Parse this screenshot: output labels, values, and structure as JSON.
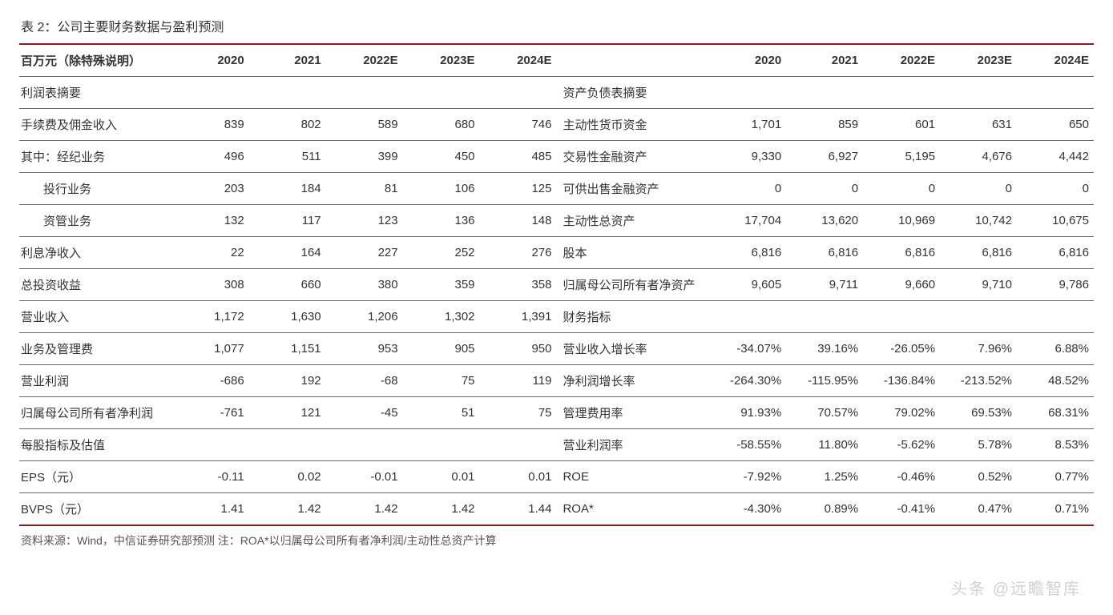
{
  "title": "表 2：公司主要财务数据与盈利预测",
  "header": {
    "left_label": "百万元（除特殊说明）",
    "years": [
      "2020",
      "2021",
      "2022E",
      "2023E",
      "2024E"
    ]
  },
  "sections": {
    "left_section_1": "利润表摘要",
    "right_section_1": "资产负债表摘要",
    "right_section_2": "财务指标",
    "left_section_2": "每股指标及估值"
  },
  "rows": [
    {
      "left_label": "手续费及佣金收入",
      "left_vals": [
        "839",
        "802",
        "589",
        "680",
        "746"
      ],
      "right_label": "主动性货币资金",
      "right_vals": [
        "1,701",
        "859",
        "601",
        "631",
        "650"
      ]
    },
    {
      "left_label": "其中：经纪业务",
      "left_vals": [
        "496",
        "511",
        "399",
        "450",
        "485"
      ],
      "right_label": "交易性金融资产",
      "right_vals": [
        "9,330",
        "6,927",
        "5,195",
        "4,676",
        "4,442"
      ]
    },
    {
      "left_label": "投行业务",
      "left_indent": true,
      "left_vals": [
        "203",
        "184",
        "81",
        "106",
        "125"
      ],
      "right_label": "可供出售金融资产",
      "right_vals": [
        "0",
        "0",
        "0",
        "0",
        "0"
      ]
    },
    {
      "left_label": "资管业务",
      "left_indent": true,
      "left_vals": [
        "132",
        "117",
        "123",
        "136",
        "148"
      ],
      "right_label": "主动性总资产",
      "right_vals": [
        "17,704",
        "13,620",
        "10,969",
        "10,742",
        "10,675"
      ]
    },
    {
      "left_label": "利息净收入",
      "left_vals": [
        "22",
        "164",
        "227",
        "252",
        "276"
      ],
      "right_label": "股本",
      "right_vals": [
        "6,816",
        "6,816",
        "6,816",
        "6,816",
        "6,816"
      ]
    },
    {
      "left_label": "总投资收益",
      "left_vals": [
        "308",
        "660",
        "380",
        "359",
        "358"
      ],
      "right_label": "归属母公司所有者净资产",
      "right_vals": [
        "9,605",
        "9,711",
        "9,660",
        "9,710",
        "9,786"
      ]
    },
    {
      "left_label": "营业收入",
      "left_vals": [
        "1,172",
        "1,630",
        "1,206",
        "1,302",
        "1,391"
      ],
      "right_label": "财务指标",
      "right_is_section": true,
      "right_vals": [
        "",
        "",
        "",
        "",
        ""
      ]
    },
    {
      "left_label": "业务及管理费",
      "left_vals": [
        "1,077",
        "1,151",
        "953",
        "905",
        "950"
      ],
      "right_label": "营业收入增长率",
      "right_vals": [
        "-34.07%",
        "39.16%",
        "-26.05%",
        "7.96%",
        "6.88%"
      ]
    },
    {
      "left_label": "营业利润",
      "left_vals": [
        "-686",
        "192",
        "-68",
        "75",
        "119"
      ],
      "right_label": "净利润增长率",
      "right_vals": [
        "-264.30%",
        "-115.95%",
        "-136.84%",
        "-213.52%",
        "48.52%"
      ]
    },
    {
      "left_label": "归属母公司所有者净利润",
      "left_vals": [
        "-761",
        "121",
        "-45",
        "51",
        "75"
      ],
      "right_label": "管理费用率",
      "right_vals": [
        "91.93%",
        "70.57%",
        "79.02%",
        "69.53%",
        "68.31%"
      ]
    },
    {
      "left_label": "每股指标及估值",
      "left_is_section": true,
      "left_vals": [
        "",
        "",
        "",
        "",
        ""
      ],
      "right_label": "营业利润率",
      "right_vals": [
        "-58.55%",
        "11.80%",
        "-5.62%",
        "5.78%",
        "8.53%"
      ]
    },
    {
      "left_label": "EPS（元）",
      "left_vals": [
        "-0.11",
        "0.02",
        "-0.01",
        "0.01",
        "0.01"
      ],
      "right_label": "ROE",
      "right_vals": [
        "-7.92%",
        "1.25%",
        "-0.46%",
        "0.52%",
        "0.77%"
      ]
    },
    {
      "left_label": "BVPS（元）",
      "left_vals": [
        "1.41",
        "1.42",
        "1.42",
        "1.42",
        "1.44"
      ],
      "right_label": "ROA*",
      "right_vals": [
        "-4.30%",
        "0.89%",
        "-0.41%",
        "0.47%",
        "0.71%"
      ]
    }
  ],
  "source": "资料来源：Wind，中信证券研究部预测    注：ROA*以归属母公司所有者净利润/主动性总资产计算",
  "watermark": "头条 @远瞻智库",
  "style": {
    "font_family": "Microsoft YaHei, SimSun, Arial, sans-serif",
    "title_fontsize": 16,
    "body_fontsize": 15,
    "border_color_thick": "#8B1A1A",
    "border_color_thin": "#666666",
    "text_color": "#333333",
    "background": "#ffffff",
    "watermark_color": "#aaaaaa"
  }
}
